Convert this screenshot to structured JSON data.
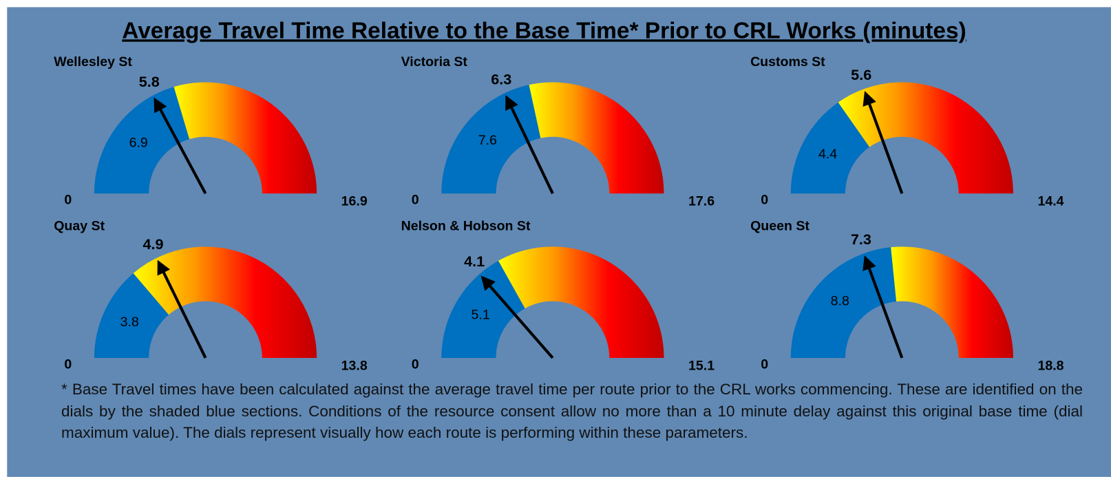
{
  "title": "Average Travel Time Relative to the Base Time* Prior to CRL Works (minutes)",
  "footnote": "* Base Travel times have been calculated against the average travel time per route prior to the CRL works commencing. These are identified on the dials by the shaded blue sections. Conditions of the resource consent allow no more than a 10 minute delay against this original base time (dial maximum value). The dials represent visually how each route is performing within these parameters.",
  "chart_data": [
    {
      "type": "gauge",
      "title": "Wellesley St",
      "ylim": [
        0,
        16.9
      ],
      "base": 6.9,
      "value": 5.8,
      "base_color": "#0070c0",
      "colors": [
        "#ffff00",
        "#ff9900",
        "#ff0000",
        "#c00000"
      ]
    },
    {
      "type": "gauge",
      "title": "Victoria St",
      "ylim": [
        0,
        17.6
      ],
      "base": 7.6,
      "value": 6.3,
      "base_color": "#0070c0",
      "colors": [
        "#ffff00",
        "#ff9900",
        "#ff0000",
        "#c00000"
      ]
    },
    {
      "type": "gauge",
      "title": "Customs St",
      "ylim": [
        0,
        14.4
      ],
      "base": 4.4,
      "value": 5.6,
      "base_color": "#0070c0",
      "colors": [
        "#ffff00",
        "#ff9900",
        "#ff0000",
        "#c00000"
      ]
    },
    {
      "type": "gauge",
      "title": "Quay St",
      "ylim": [
        0,
        13.8
      ],
      "base": 3.8,
      "value": 4.9,
      "base_color": "#0070c0",
      "colors": [
        "#ffff00",
        "#ff9900",
        "#ff0000",
        "#c00000"
      ]
    },
    {
      "type": "gauge",
      "title": "Nelson & Hobson St",
      "ylim": [
        0,
        15.1
      ],
      "base": 5.1,
      "value": 4.1,
      "base_color": "#0070c0",
      "colors": [
        "#ffff00",
        "#ff9900",
        "#ff0000",
        "#c00000"
      ]
    },
    {
      "type": "gauge",
      "title": "Queen St",
      "ylim": [
        0,
        18.8
      ],
      "base": 8.8,
      "value": 7.3,
      "base_color": "#0070c0",
      "colors": [
        "#ffff00",
        "#ff9900",
        "#ff0000",
        "#c00000"
      ]
    }
  ]
}
